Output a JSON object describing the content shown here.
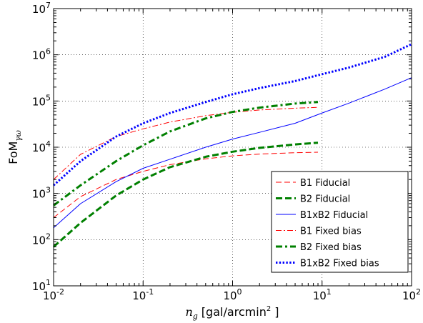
{
  "chart_data": {
    "type": "line",
    "title": "",
    "xlabel_parts": {
      "var": "n",
      "sub": "g",
      "pre": "[gal/arcmin",
      "sup": "2",
      "post": " ]"
    },
    "ylabel_parts": {
      "base": "FoM",
      "sub": "γω"
    },
    "x_scale": "log",
    "y_scale": "log",
    "xlim": [
      0.01,
      100
    ],
    "ylim": [
      10,
      10000000
    ],
    "grid": true,
    "legend_position": "lower right",
    "x_ticks": [
      {
        "value": 0.01,
        "base": "10",
        "exp": "-2"
      },
      {
        "value": 0.1,
        "base": "10",
        "exp": "-1"
      },
      {
        "value": 1,
        "base": "10",
        "exp": "0"
      },
      {
        "value": 10,
        "base": "10",
        "exp": "1"
      },
      {
        "value": 100,
        "base": "10",
        "exp": "2"
      }
    ],
    "y_ticks": [
      {
        "value": 10,
        "base": "10",
        "exp": "1"
      },
      {
        "value": 100,
        "base": "10",
        "exp": "2"
      },
      {
        "value": 1000,
        "base": "10",
        "exp": "3"
      },
      {
        "value": 10000,
        "base": "10",
        "exp": "4"
      },
      {
        "value": 100000,
        "base": "10",
        "exp": "5"
      },
      {
        "value": 1000000,
        "base": "10",
        "exp": "6"
      },
      {
        "value": 10000000,
        "base": "10",
        "exp": "7"
      }
    ],
    "series": [
      {
        "name": "B1 Fiducial",
        "color": "#ff0000",
        "style": "dashed",
        "width": 1,
        "x": [
          0.01,
          0.02,
          0.05,
          0.1,
          0.2,
          0.5,
          1,
          2,
          5,
          9
        ],
        "y": [
          300,
          850,
          2000,
          3000,
          4200,
          5600,
          6500,
          7100,
          7600,
          7800
        ]
      },
      {
        "name": "B2 Fiducial",
        "color": "#008000",
        "style": "dashed",
        "width": 3,
        "x": [
          0.01,
          0.02,
          0.05,
          0.1,
          0.2,
          0.5,
          1,
          2,
          5,
          9
        ],
        "y": [
          70,
          230,
          900,
          2000,
          3700,
          6200,
          8000,
          9700,
          11500,
          12500
        ]
      },
      {
        "name": "B1xB2 Fiducial",
        "color": "#0000ff",
        "style": "solid",
        "width": 1,
        "x": [
          0.01,
          0.02,
          0.05,
          0.1,
          0.2,
          0.5,
          1,
          2,
          5,
          10,
          20,
          50,
          100
        ],
        "y": [
          180,
          600,
          1800,
          3500,
          5500,
          10000,
          15000,
          21000,
          33000,
          55000,
          90000,
          180000,
          320000
        ]
      },
      {
        "name": "B1 Fixed bias",
        "color": "#ff0000",
        "style": "dashdot",
        "width": 1,
        "x": [
          0.01,
          0.02,
          0.05,
          0.1,
          0.2,
          0.5,
          1,
          2,
          5,
          9
        ],
        "y": [
          2000,
          7000,
          17000,
          25000,
          35000,
          48000,
          57000,
          64000,
          70000,
          73000
        ]
      },
      {
        "name": "B2 Fixed bias",
        "color": "#008000",
        "style": "dashdot",
        "width": 3,
        "x": [
          0.01,
          0.02,
          0.05,
          0.1,
          0.2,
          0.5,
          1,
          2,
          5,
          9
        ],
        "y": [
          550,
          1500,
          5000,
          11000,
          22000,
          42000,
          58000,
          72000,
          88000,
          95000
        ]
      },
      {
        "name": "B1xB2 Fixed bias",
        "color": "#0000ff",
        "style": "dotted",
        "width": 3,
        "x": [
          0.01,
          0.02,
          0.05,
          0.1,
          0.2,
          0.5,
          1,
          2,
          5,
          10,
          20,
          50,
          100
        ],
        "y": [
          1500,
          5000,
          17000,
          33000,
          55000,
          95000,
          140000,
          190000,
          270000,
          380000,
          530000,
          900000,
          1700000
        ]
      }
    ]
  }
}
